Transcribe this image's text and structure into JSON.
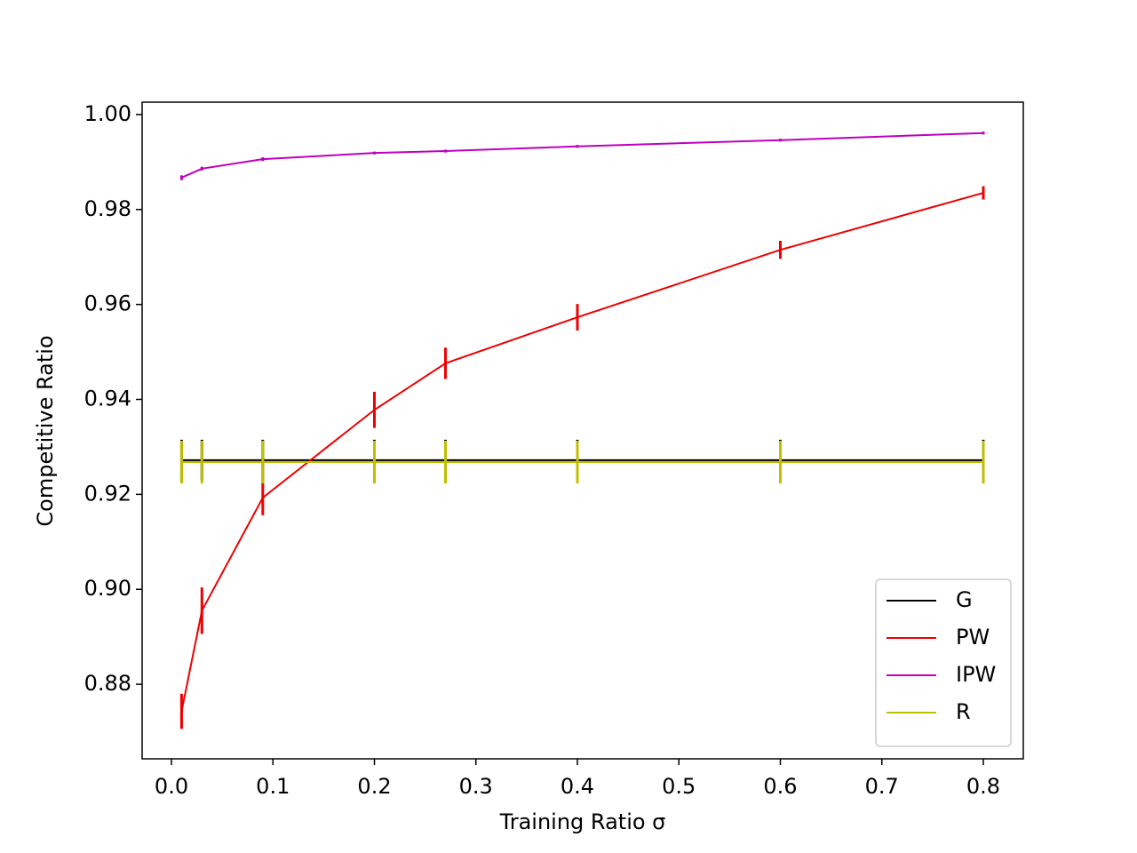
{
  "chart_data": {
    "type": "line",
    "x_label": "Training Ratio σ",
    "y_label": "Competitive Ratio",
    "x": [
      0.01,
      0.03,
      0.09,
      0.2,
      0.27,
      0.4,
      0.6,
      0.8
    ],
    "series": [
      {
        "name": "G",
        "color": "#000000",
        "values": [
          0.9272,
          0.9272,
          0.9272,
          0.9272,
          0.9272,
          0.9272,
          0.9272,
          0.9272
        ],
        "errors": [
          0.0043,
          0.0043,
          0.0043,
          0.0043,
          0.0043,
          0.0043,
          0.0043,
          0.0043
        ]
      },
      {
        "name": "PW",
        "color": "#ee0000",
        "values": [
          0.8743,
          0.8955,
          0.9193,
          0.9378,
          0.9476,
          0.9573,
          0.9715,
          0.9835
        ],
        "errors": [
          0.0037,
          0.0049,
          0.0037,
          0.0038,
          0.0033,
          0.0028,
          0.0019,
          0.0014
        ]
      },
      {
        "name": "IPW",
        "color": "#bf00bf",
        "values": [
          0.9867,
          0.9886,
          0.9906,
          0.9919,
          0.9923,
          0.9933,
          0.9946,
          0.9961
        ],
        "errors": [
          0.0005,
          0.0004,
          0.0004,
          0.0003,
          0.0003,
          0.0003,
          0.0003,
          0.0003
        ]
      },
      {
        "name": "R",
        "color": "#bfbf00",
        "values": [
          0.9268,
          0.9268,
          0.9268,
          0.9268,
          0.9268,
          0.9268,
          0.9268,
          0.9268
        ],
        "errors": [
          0.0045,
          0.0045,
          0.0045,
          0.0045,
          0.0045,
          0.0045,
          0.0045,
          0.0045
        ]
      }
    ],
    "xlim": [
      -0.0289,
      0.8394
    ],
    "ylim": [
      0.8643,
      1.0026
    ],
    "xticks": [
      {
        "value": 0.0,
        "label": "0.0"
      },
      0.1,
      0.2,
      0.3,
      0.4,
      0.5,
      0.6,
      0.7,
      0.8
    ],
    "yticks": [
      0.88,
      {
        "value": 0.9,
        "label": "0.90"
      },
      0.92,
      0.94,
      0.96,
      0.98,
      {
        "value": 1.0,
        "label": "1.00"
      }
    ],
    "legend": "lower right",
    "grid": false
  }
}
